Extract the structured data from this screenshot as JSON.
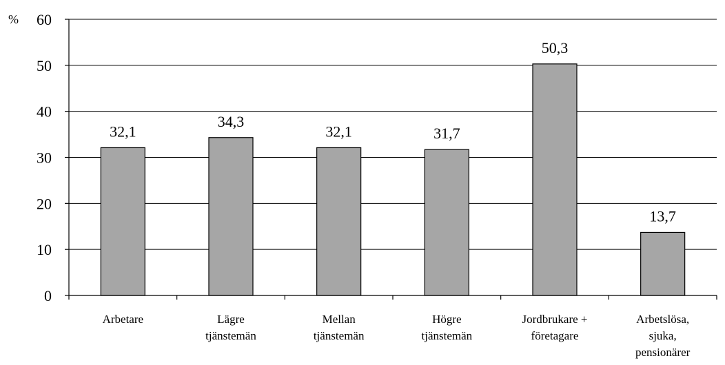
{
  "chart_data": {
    "type": "bar",
    "ylabel": "%",
    "ylim": [
      0,
      60
    ],
    "yticks": [
      0,
      10,
      20,
      30,
      40,
      50,
      60
    ],
    "grid": true,
    "categories": [
      [
        "Arbetare"
      ],
      [
        "Lägre",
        "tjänstemän"
      ],
      [
        "Mellan",
        "tjänstemän"
      ],
      [
        "Högre",
        "tjänstemän"
      ],
      [
        "Jordbrukare +",
        "företagare"
      ],
      [
        "Arbetslösa,",
        "sjuka,",
        "pensionärer"
      ]
    ],
    "values": [
      32.1,
      34.3,
      32.1,
      31.7,
      50.3,
      13.7
    ],
    "data_labels": [
      "32,1",
      "34,3",
      "32,1",
      "31,7",
      "50,3",
      "13,7"
    ],
    "colors": {
      "bar": "#a6a6a6",
      "bar_stroke": "#000000",
      "grid": "#000000"
    }
  }
}
